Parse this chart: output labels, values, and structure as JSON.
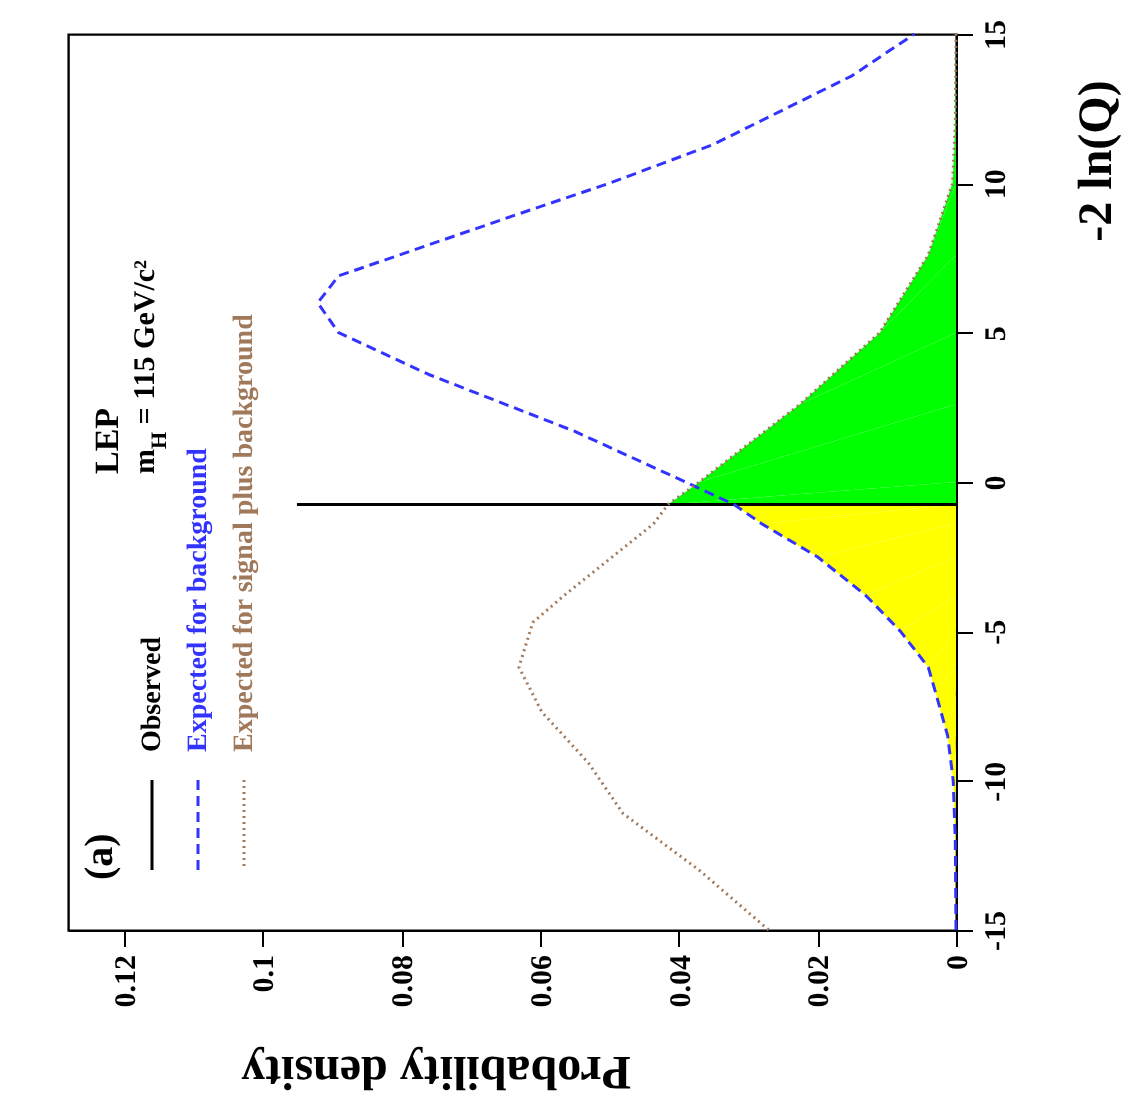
{
  "chart_data": {
    "type": "line",
    "xlabel": "Probability density",
    "ylabel": "-2 ln(Q)",
    "annotations": [
      "(a)",
      "LEP",
      "m$_{H}$ = 115 GeV/c²"
    ],
    "xlim": [
      0.128,
      0
    ],
    "xticks": [
      0.12,
      0.1,
      0.08,
      0.06,
      0.04,
      0.02,
      0
    ],
    "ylim": [
      -15,
      15
    ],
    "yticks": [
      -15,
      -10,
      -5,
      0,
      5,
      10,
      15
    ],
    "legend": "left",
    "grid": false,
    "series": [
      {
        "type": "area",
        "color": "#ffff00",
        "x": [
          0,
          0.0001,
          0.0004,
          0.0012,
          0.003,
          0.004,
          0.008,
          0.013,
          0.02,
          0.028,
          0.032
        ],
        "values": [
          -15,
          -12,
          -10,
          -8.5,
          -7,
          -6.2,
          -5,
          -3.8,
          -2.5,
          -1.4,
          -0.75
        ]
      },
      {
        "type": "area",
        "color": "#00ff00",
        "x": [
          0,
          0.0415,
          0.037,
          0.0225,
          0.011,
          0.004,
          0.0005,
          0.0001,
          0
        ],
        "values": [
          -0.75,
          -0.75,
          0,
          2.6,
          5,
          7.6,
          10,
          12,
          15
        ]
      },
      {
        "type": "line",
        "name": "Observed",
        "color": "#000000",
        "line_style": "solid",
        "x": [
          0,
          0.095
        ],
        "values": [
          -0.75,
          -0.75
        ]
      },
      {
        "type": "line",
        "name": "Expected for background",
        "color": "#3333ff",
        "line_style": "dashed",
        "x": [
          0,
          0.0001,
          0.0004,
          0.0012,
          0.003,
          0.004,
          0.008,
          0.013,
          0.02,
          0.028,
          0.032,
          0.039,
          0.055,
          0.076,
          0.089,
          0.092,
          0.089,
          0.064,
          0.05,
          0.035,
          0.015,
          0.006
        ],
        "values": [
          -15,
          -12,
          -10,
          -8.5,
          -7,
          -6.2,
          -5,
          -3.8,
          -2.5,
          -1.4,
          -0.75,
          0,
          1.7,
          3.6,
          5,
          6,
          6.9,
          8.9,
          10,
          11.3,
          13.6,
          15
        ]
      },
      {
        "type": "line",
        "name": "Expected for signal plus background",
        "color": "#a0785a",
        "line_style": "dotted",
        "x": [
          0.027,
          0.037,
          0.048,
          0.053,
          0.0597,
          0.063,
          0.061,
          0.0565,
          0.0436,
          0.0415,
          0.037,
          0.0225,
          0.011,
          0.004,
          0.0005,
          0.0001,
          0
        ],
        "values": [
          -15,
          -13,
          -11.1,
          -9.4,
          -7.7,
          -6.2,
          -4.7,
          -3.8,
          -1.4,
          -0.75,
          0,
          2.6,
          5,
          7.6,
          10,
          12,
          15
        ]
      }
    ]
  }
}
